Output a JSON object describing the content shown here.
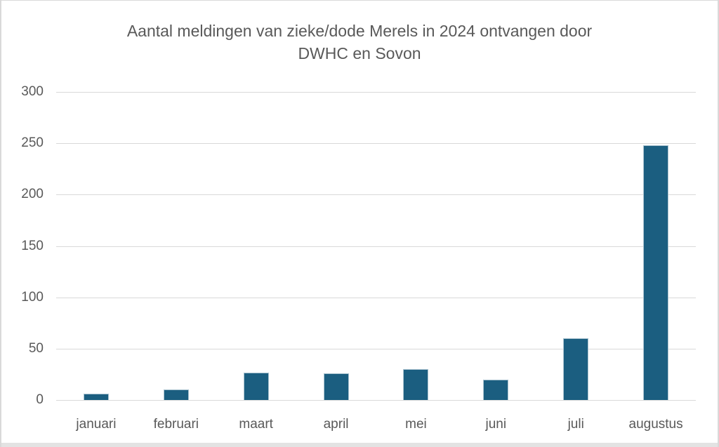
{
  "chart_data": {
    "type": "bar",
    "title": "Aantal meldingen van zieke/dode Merels in 2024 ontvangen door DWHC en Sovon",
    "title_lines": [
      "Aantal meldingen van zieke/dode Merels in 2024 ontvangen door",
      "DWHC en Sovon"
    ],
    "categories": [
      "januari",
      "februari",
      "maart",
      "april",
      "mei",
      "juni",
      "juli",
      "augustus"
    ],
    "values": [
      6,
      10,
      27,
      26,
      30,
      20,
      60,
      248
    ],
    "xlabel": "",
    "ylabel": "",
    "ylim": [
      0,
      300
    ],
    "yticks": [
      0,
      50,
      100,
      150,
      200,
      250,
      300
    ],
    "grid": true,
    "legend": false,
    "colors": {
      "bar_fill": "#1b5e80",
      "gridline": "#d9d9d9",
      "axis_text": "#595959",
      "title_text": "#595959",
      "frame_border": "#d9d9d9",
      "bottom_edge": "#e3e3e3"
    }
  }
}
